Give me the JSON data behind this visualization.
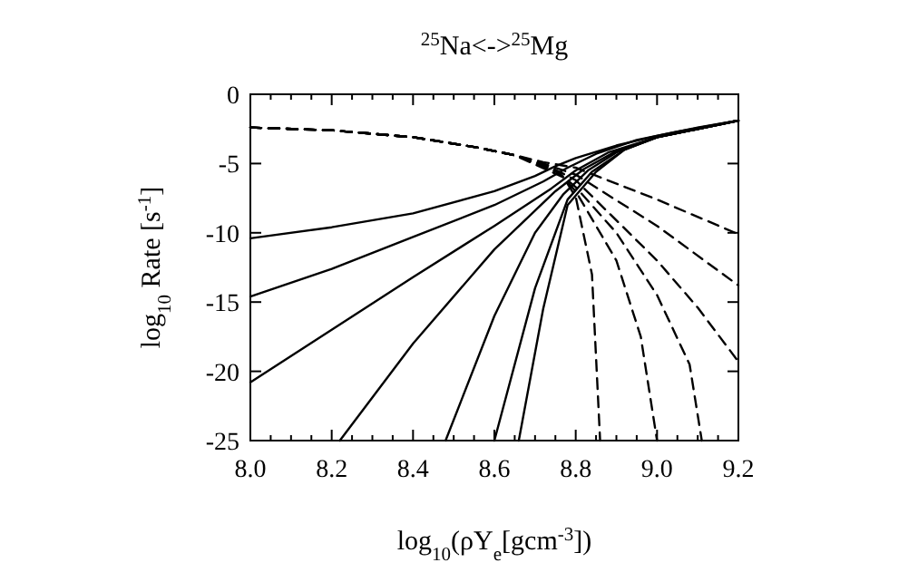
{
  "chart_data": {
    "type": "line",
    "title": "$^{25}$Na<->$^{25}$Mg",
    "xlabel": "log$_{10}$(ρY$_{e}$[gcm$^{-3}$])",
    "ylabel": "log$_{10}$ Rate [s$^{-1}$]",
    "xlim": [
      8.0,
      9.2
    ],
    "ylim": [
      -25,
      0
    ],
    "xticks": [
      {
        "value": 8.0,
        "label": "8.0"
      },
      {
        "value": 8.05,
        "label": null
      },
      {
        "value": 8.1,
        "label": null
      },
      {
        "value": 8.15,
        "label": null
      },
      {
        "value": 8.2,
        "label": "8.2"
      },
      {
        "value": 8.25,
        "label": null
      },
      {
        "value": 8.3,
        "label": null
      },
      {
        "value": 8.35,
        "label": null
      },
      {
        "value": 8.4,
        "label": "8.4"
      },
      {
        "value": 8.45,
        "label": null
      },
      {
        "value": 8.5,
        "label": null
      },
      {
        "value": 8.55,
        "label": null
      },
      {
        "value": 8.6,
        "label": "8.6"
      },
      {
        "value": 8.65,
        "label": null
      },
      {
        "value": 8.7,
        "label": null
      },
      {
        "value": 8.75,
        "label": null
      },
      {
        "value": 8.8,
        "label": "8.8"
      },
      {
        "value": 8.85,
        "label": null
      },
      {
        "value": 8.9,
        "label": null
      },
      {
        "value": 8.95,
        "label": null
      },
      {
        "value": 9.0,
        "label": "9.0"
      },
      {
        "value": 9.05,
        "label": null
      },
      {
        "value": 9.1,
        "label": null
      },
      {
        "value": 9.15,
        "label": null
      },
      {
        "value": 9.2,
        "label": "9.2"
      }
    ],
    "yticks": [
      0,
      -5,
      -10,
      -15,
      -20,
      -25
    ],
    "grid": false,
    "marker": "none",
    "series": [
      {
        "color": "#000000",
        "line_style": "solid",
        "x": [
          8.0,
          8.2,
          8.4,
          8.6,
          8.7,
          8.75,
          8.8,
          8.9,
          9.0,
          9.1,
          9.2
        ],
        "values": [
          -10.4,
          -9.6,
          -8.6,
          -7.0,
          -5.9,
          -5.2,
          -4.6,
          -3.7,
          -3.0,
          -2.4,
          -1.9
        ]
      },
      {
        "color": "#000000",
        "line_style": "solid",
        "x": [
          8.0,
          8.2,
          8.4,
          8.6,
          8.72,
          8.78,
          8.85,
          8.95,
          9.05,
          9.2
        ],
        "values": [
          -14.6,
          -12.6,
          -10.3,
          -8.0,
          -6.3,
          -5.3,
          -4.3,
          -3.3,
          -2.7,
          -1.9
        ]
      },
      {
        "color": "#000000",
        "line_style": "solid",
        "x": [
          8.0,
          8.2,
          8.4,
          8.6,
          8.74,
          8.8,
          8.88,
          9.0,
          9.2
        ],
        "values": [
          -20.8,
          -17.0,
          -13.2,
          -9.5,
          -6.8,
          -5.5,
          -4.2,
          -3.1,
          -1.9
        ]
      },
      {
        "color": "#000000",
        "line_style": "solid",
        "x": [
          8.22,
          8.4,
          8.6,
          8.75,
          8.82,
          8.9,
          9.0,
          9.2
        ],
        "values": [
          -25,
          -18.0,
          -11.2,
          -7.0,
          -5.4,
          -4.1,
          -3.1,
          -1.9
        ]
      },
      {
        "color": "#000000",
        "line_style": "solid",
        "x": [
          8.48,
          8.6,
          8.7,
          8.77,
          8.83,
          8.9,
          9.0,
          9.2
        ],
        "values": [
          -25,
          -16.0,
          -10.0,
          -7.2,
          -5.5,
          -4.2,
          -3.1,
          -1.9
        ]
      },
      {
        "color": "#000000",
        "line_style": "solid",
        "x": [
          8.6,
          8.7,
          8.78,
          8.84,
          8.92,
          9.0,
          9.2
        ],
        "values": [
          -25,
          -14.0,
          -7.6,
          -5.6,
          -4.0,
          -3.1,
          -1.9
        ]
      },
      {
        "color": "#000000",
        "line_style": "solid",
        "x": [
          8.66,
          8.72,
          8.78,
          8.85,
          8.92,
          9.0,
          9.2
        ],
        "values": [
          -25,
          -15.5,
          -8.0,
          -5.6,
          -4.0,
          -3.1,
          -1.9
        ]
      },
      {
        "color": "#000000",
        "line_style": "dashed",
        "x": [
          8.0,
          8.2,
          8.4,
          8.55,
          8.65,
          8.72,
          8.8,
          9.0,
          9.2
        ],
        "values": [
          -2.4,
          -2.6,
          -3.1,
          -3.8,
          -4.4,
          -4.9,
          -5.3,
          -7.6,
          -10.1
        ]
      },
      {
        "color": "#000000",
        "line_style": "dashed",
        "x": [
          8.0,
          8.2,
          8.4,
          8.55,
          8.65,
          8.72,
          8.8,
          9.0,
          9.2
        ],
        "values": [
          -2.4,
          -2.6,
          -3.1,
          -3.8,
          -4.4,
          -5.0,
          -5.8,
          -9.5,
          -13.8
        ]
      },
      {
        "color": "#000000",
        "line_style": "dashed",
        "x": [
          8.0,
          8.2,
          8.4,
          8.55,
          8.65,
          8.74,
          8.8,
          9.0,
          9.1,
          9.2
        ],
        "values": [
          -2.4,
          -2.6,
          -3.1,
          -3.8,
          -4.4,
          -5.3,
          -6.2,
          -12.0,
          -15.4,
          -19.3
        ]
      },
      {
        "color": "#000000",
        "line_style": "dashed",
        "x": [
          8.0,
          8.2,
          8.4,
          8.55,
          8.65,
          8.75,
          8.8,
          8.9,
          9.0,
          9.08,
          9.11
        ],
        "values": [
          -2.4,
          -2.6,
          -3.1,
          -3.8,
          -4.4,
          -5.5,
          -6.7,
          -10.0,
          -14.5,
          -19.5,
          -25
        ]
      },
      {
        "color": "#000000",
        "line_style": "dashed",
        "x": [
          8.0,
          8.2,
          8.4,
          8.55,
          8.65,
          8.76,
          8.8,
          8.9,
          8.96,
          9.0
        ],
        "values": [
          -2.4,
          -2.6,
          -3.1,
          -3.8,
          -4.4,
          -5.7,
          -7.0,
          -12.0,
          -17.5,
          -25
        ]
      },
      {
        "color": "#000000",
        "line_style": "dashed",
        "x": [
          8.0,
          8.2,
          8.4,
          8.55,
          8.65,
          8.77,
          8.8,
          8.84,
          8.86
        ],
        "values": [
          -2.4,
          -2.6,
          -3.1,
          -3.8,
          -4.4,
          -6.0,
          -7.4,
          -13,
          -25
        ]
      }
    ]
  }
}
